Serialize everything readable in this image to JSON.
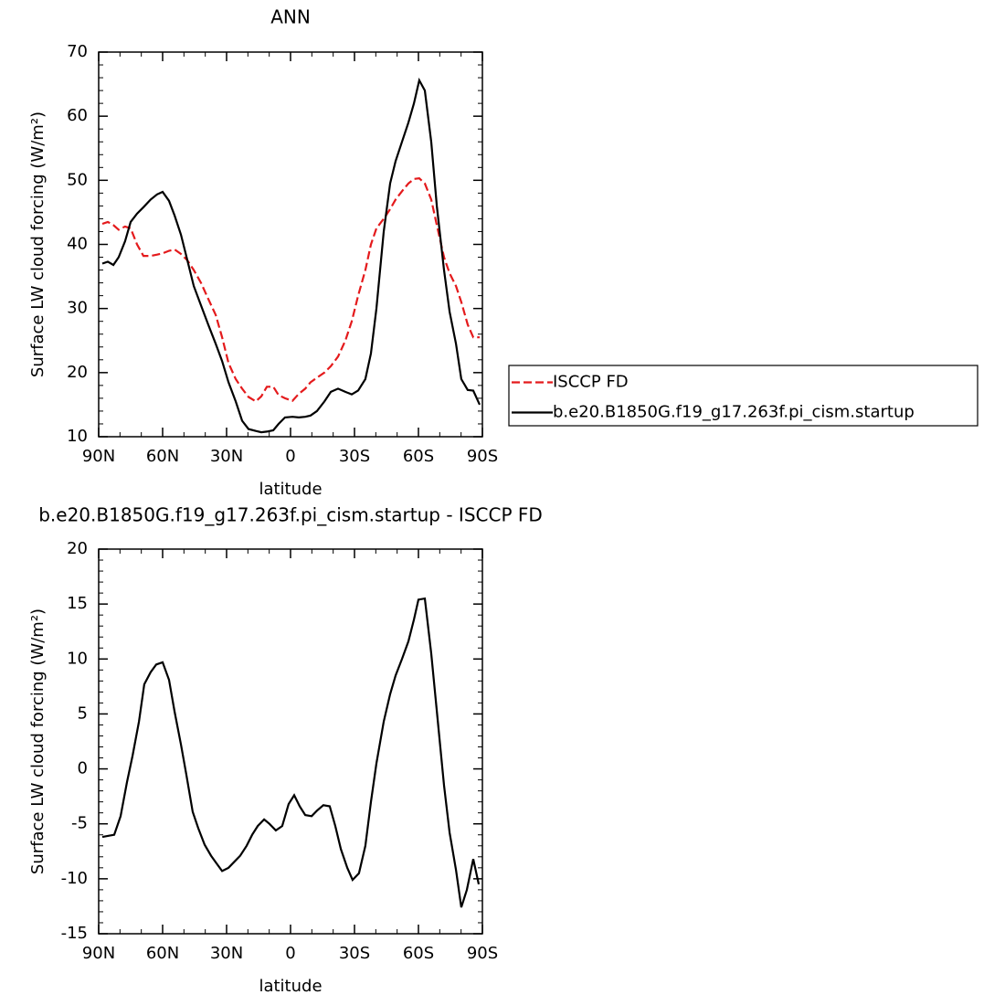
{
  "chart_data": [
    {
      "type": "line",
      "title": "ANN",
      "xlabel": "latitude",
      "ylabel": "Surface LW cloud forcing (W/m²)",
      "xlim": [
        90,
        -90
      ],
      "xticks": [
        {
          "value": 90,
          "label": "90N"
        },
        {
          "value": 60,
          "label": "60N"
        },
        {
          "value": 30,
          "label": "30N"
        },
        0,
        {
          "value": -30,
          "label": "30S"
        },
        {
          "value": -60,
          "label": "60S"
        },
        {
          "value": -90,
          "label": "90S"
        }
      ],
      "ylim": [
        10,
        70
      ],
      "yticks": [
        10,
        20,
        30,
        40,
        50,
        60,
        70
      ],
      "legend": "right",
      "x": [
        88.3,
        85.7,
        83.1,
        80.6,
        77.6,
        75.0,
        72.0,
        69.0,
        65.6,
        62.6,
        60.0,
        57.0,
        54.4,
        51.4,
        48.4,
        45.4,
        42.0,
        38.6,
        35.1,
        32.1,
        29.1,
        25.7,
        22.7,
        19.7,
        16.3,
        13.7,
        11.1,
        8.1,
        5.6,
        2.6,
        -0.9,
        -3.9,
        -6.9,
        -9.4,
        -12.4,
        -15.9,
        -18.9,
        -22.3,
        -25.7,
        -28.7,
        -31.7,
        -35.1,
        -37.7,
        -40.3,
        -43.7,
        -46.7,
        -49.3,
        -52.3,
        -55.3,
        -57.9,
        -60.4,
        -63.0,
        -66.0,
        -68.6,
        -72.0,
        -74.6,
        -77.6,
        -80.1,
        -83.1,
        -85.7,
        -88.7
      ],
      "series": [
        {
          "name": "ISCCP FD",
          "color": "#e41a1c",
          "line_style": "dashed",
          "values": [
            43.2,
            43.5,
            43,
            42.3,
            42.8,
            42.5,
            40,
            38.2,
            38.2,
            38.4,
            38.6,
            39,
            39.2,
            38.5,
            37.5,
            36,
            34,
            31.5,
            29,
            25.5,
            21.5,
            19,
            17.5,
            16.2,
            15.5,
            16.3,
            17.8,
            17.8,
            16.5,
            16,
            15.6,
            16.7,
            17.5,
            18.5,
            19.2,
            20,
            21,
            22.5,
            25,
            28,
            32,
            36,
            40,
            42.5,
            44,
            45.5,
            47,
            48.3,
            49.5,
            50.2,
            50.3,
            49.5,
            47,
            43,
            38,
            35.5,
            33.5,
            31,
            27.5,
            25.5,
            25.5
          ]
        },
        {
          "name": "b.e20.B1850G.f19_g17.263f.pi_cism.startup",
          "color": "#000000",
          "line_style": "solid",
          "values": [
            37,
            37.3,
            36.8,
            38,
            40.5,
            43.5,
            44.8,
            45.8,
            47,
            47.8,
            48.2,
            46.8,
            44.5,
            41.5,
            37.5,
            33.5,
            30.5,
            27.5,
            24.5,
            21.8,
            18.5,
            15.5,
            12.5,
            11.2,
            10.9,
            10.7,
            10.8,
            11,
            12,
            13,
            13.1,
            13,
            13.1,
            13.3,
            14,
            15.5,
            17,
            17.5,
            17,
            16.6,
            17.2,
            19,
            23,
            30,
            42,
            49.5,
            53,
            56,
            59,
            62,
            65.6,
            64,
            56,
            46,
            36,
            29.5,
            24.5,
            19,
            17.3,
            17.2,
            15
          ]
        }
      ]
    },
    {
      "type": "line",
      "title": "b.e20.B1850G.f19_g17.263f.pi_cism.startup - ISCCP FD",
      "xlabel": "latitude",
      "ylabel": "Surface LW cloud forcing (W/m²)",
      "xlim": [
        90,
        -90
      ],
      "xticks": [
        {
          "value": 90,
          "label": "90N"
        },
        {
          "value": 60,
          "label": "60N"
        },
        {
          "value": 30,
          "label": "30N"
        },
        0,
        {
          "value": -30,
          "label": "30S"
        },
        {
          "value": -60,
          "label": "60S"
        },
        {
          "value": -90,
          "label": "90S"
        }
      ],
      "ylim": [
        -15,
        20
      ],
      "yticks": [
        -15,
        -10,
        -5,
        0,
        5,
        10,
        15,
        20
      ],
      "x": [
        88.3,
        85.7,
        82.7,
        79.7,
        76.7,
        74.1,
        71.1,
        68.6,
        65.6,
        63.0,
        60.0,
        57.0,
        54.4,
        51.4,
        48.9,
        45.9,
        43.3,
        40.3,
        37.3,
        34.7,
        32.1,
        29.1,
        26.6,
        23.6,
        20.6,
        18.0,
        15.4,
        12.4,
        9.9,
        6.9,
        3.9,
        0.9,
        -1.7,
        -4.3,
        -6.9,
        -9.9,
        -12.4,
        -15.4,
        -18.4,
        -21.0,
        -23.6,
        -26.6,
        -29.1,
        -32.1,
        -35.1,
        -37.7,
        -40.3,
        -43.7,
        -46.7,
        -49.3,
        -52.3,
        -55.3,
        -57.9,
        -60.0,
        -63.0,
        -66.0,
        -69.0,
        -72.0,
        -74.6,
        -77.6,
        -80.1,
        -82.7,
        -85.7,
        -88.3
      ],
      "series": [
        {
          "color": "#000000",
          "line_style": "solid",
          "values": [
            -6.2,
            -6.1,
            -6,
            -4.3,
            -1.2,
            1.2,
            4.3,
            7.7,
            8.8,
            9.5,
            9.7,
            8.1,
            5.2,
            2.2,
            -0.5,
            -3.9,
            -5.4,
            -6.9,
            -7.9,
            -8.6,
            -9.3,
            -9,
            -8.5,
            -7.9,
            -7,
            -6,
            -5.2,
            -4.6,
            -5,
            -5.6,
            -5.2,
            -3.2,
            -2.4,
            -3.4,
            -4.2,
            -4.3,
            -3.8,
            -3.3,
            -3.4,
            -5.2,
            -7.3,
            -9,
            -10.1,
            -9.5,
            -7,
            -3,
            0.5,
            4.3,
            6.8,
            8.5,
            10,
            11.6,
            13.6,
            15.4,
            15.5,
            10.5,
            4.5,
            -1.5,
            -5.8,
            -9.2,
            -12.6,
            -11,
            -8.2,
            -10.5
          ]
        }
      ]
    }
  ]
}
